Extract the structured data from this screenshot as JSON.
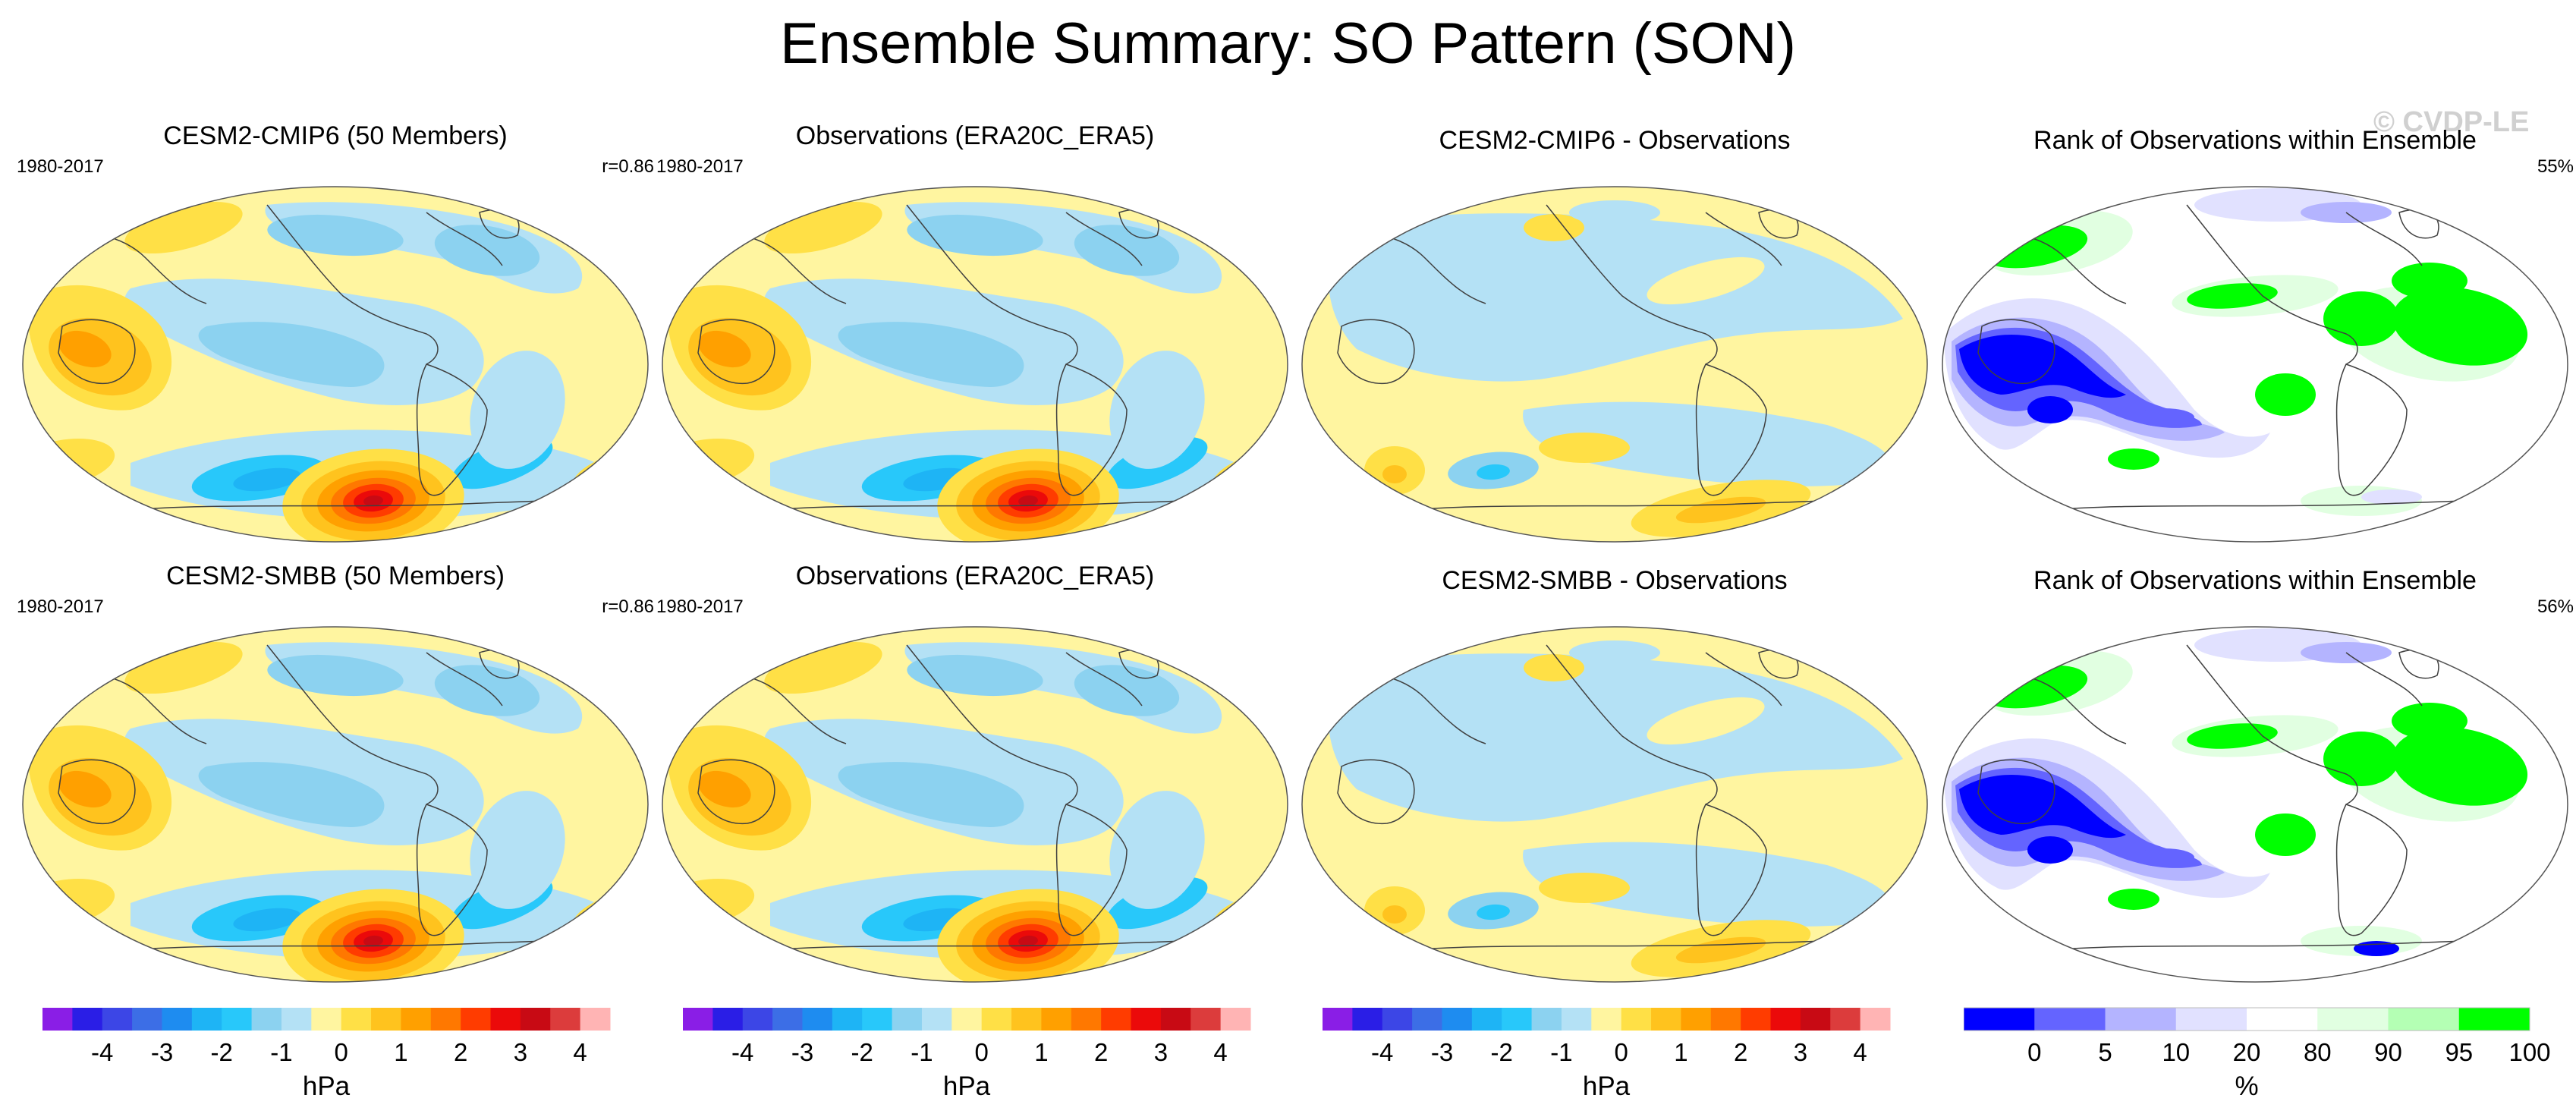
{
  "figure": {
    "title": "Ensemble Summary: SO Pattern (SON)",
    "watermark": "© CVDP-LE"
  },
  "panels": [
    {
      "title": "CESM2-CMIP6 (50 Members)",
      "left": "1980-2017",
      "right": "r=0.86",
      "kind": "pattern",
      "variant": "model"
    },
    {
      "title": "Observations (ERA20C_ERA5)",
      "left": "1980-2017",
      "right": "",
      "kind": "pattern",
      "variant": "obs"
    },
    {
      "title": "CESM2-CMIP6 - Observations",
      "left": "",
      "right": "",
      "kind": "diff",
      "variant": "diff1"
    },
    {
      "title": "Rank of Observations within Ensemble",
      "left": "",
      "right": "55%",
      "kind": "rank",
      "variant": "rank1"
    },
    {
      "title": "CESM2-SMBB (50 Members)",
      "left": "1980-2017",
      "right": "r=0.86",
      "kind": "pattern",
      "variant": "model2"
    },
    {
      "title": "Observations (ERA20C_ERA5)",
      "left": "1980-2017",
      "right": "",
      "kind": "pattern",
      "variant": "obs"
    },
    {
      "title": "CESM2-SMBB - Observations",
      "left": "",
      "right": "",
      "kind": "diff",
      "variant": "diff2"
    },
    {
      "title": "Rank of Observations within Ensemble",
      "left": "",
      "right": "56%",
      "kind": "rank",
      "variant": "rank2"
    }
  ],
  "chart_data": [
    {
      "type": "heatmap",
      "name": "pressure-colorbar",
      "units": "hPa",
      "levels": [
        -4.5,
        -4,
        -3.5,
        -3,
        -2.5,
        -2,
        -1.5,
        -1,
        -0.5,
        0,
        0.5,
        1,
        1.5,
        2,
        2.5,
        3,
        3.5,
        4,
        4.5
      ],
      "tick_labels": [
        "-4",
        "-3",
        "-2",
        "-1",
        "0",
        "1",
        "2",
        "3",
        "4"
      ],
      "tick_values": [
        -4,
        -3,
        -2,
        -1,
        0,
        1,
        2,
        3,
        4
      ],
      "colors": [
        "#8a1ee6",
        "#2a1ee6",
        "#3c46e6",
        "#3c6ee6",
        "#1e8cf0",
        "#1eb4f5",
        "#28c8fa",
        "#8cd2f0",
        "#b4e1f5",
        "#fff5a0",
        "#ffe046",
        "#ffc31e",
        "#ffa000",
        "#ff7800",
        "#ff3c00",
        "#eb0a0a",
        "#c80a14",
        "#dc3c3c",
        "#ffb4b4"
      ]
    },
    {
      "type": "heatmap",
      "name": "rank-colorbar",
      "units": "%",
      "boundaries": [
        -5,
        0,
        5,
        10,
        20,
        80,
        90,
        95,
        100,
        105
      ],
      "tick_labels": [
        "0",
        "5",
        "10",
        "20",
        "80",
        "90",
        "95",
        "100"
      ],
      "tick_values": [
        0,
        5,
        10,
        20,
        80,
        90,
        95,
        100
      ],
      "colors": [
        "#0000ff",
        "#6464ff",
        "#b4b4ff",
        "#e1e1ff",
        "#ffffff",
        "#e1ffe1",
        "#b4ffb4",
        "#00ff00"
      ]
    }
  ]
}
